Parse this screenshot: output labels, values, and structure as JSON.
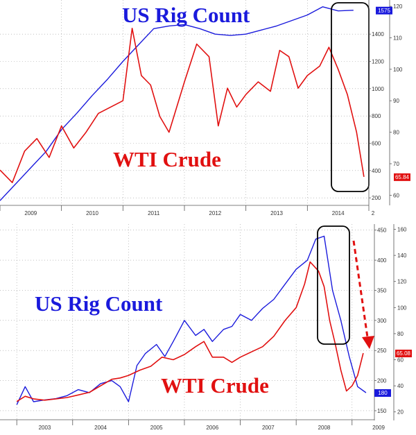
{
  "chart_data": [
    {
      "type": "line",
      "panel": "top",
      "period": [
        "2009",
        "2014"
      ],
      "annotations": [
        "US Rig Count",
        "WTI Crude"
      ],
      "x_ticks": [
        "2009",
        "2010",
        "2011",
        "2012",
        "2013",
        "2014",
        "2"
      ],
      "left_axis": {
        "ticks": [
          200,
          400,
          600,
          800,
          1000,
          1200,
          1400
        ],
        "range": [
          150,
          1650
        ]
      },
      "right_axis": {
        "ticks": [
          60,
          70,
          80,
          90,
          100,
          110,
          120
        ],
        "range": [
          57,
          122
        ]
      },
      "series": [
        {
          "name": "US Rig Count",
          "color": "#1a1adc",
          "axis": "left",
          "last_value_label": "1575",
          "x": [
            2009.0,
            2009.25,
            2009.5,
            2009.75,
            2010.0,
            2010.25,
            2010.5,
            2010.75,
            2011.0,
            2011.25,
            2011.5,
            2011.75,
            2012.0,
            2012.25,
            2012.5,
            2012.75,
            2013.0,
            2013.25,
            2013.5,
            2013.75,
            2014.0,
            2014.25,
            2014.5,
            2014.75
          ],
          "y": [
            180,
            300,
            420,
            540,
            700,
            820,
            950,
            1070,
            1200,
            1320,
            1440,
            1460,
            1470,
            1440,
            1400,
            1390,
            1400,
            1430,
            1460,
            1500,
            1540,
            1600,
            1570,
            1575
          ]
        },
        {
          "name": "WTI Crude",
          "color": "#e11010",
          "axis": "right",
          "last_value_label": "65.84",
          "x": [
            2009.0,
            2009.2,
            2009.4,
            2009.6,
            2009.8,
            2010.0,
            2010.2,
            2010.4,
            2010.6,
            2010.8,
            2011.0,
            2011.15,
            2011.3,
            2011.45,
            2011.6,
            2011.75,
            2012.0,
            2012.2,
            2012.4,
            2012.55,
            2012.7,
            2012.85,
            2013.0,
            2013.2,
            2013.4,
            2013.55,
            2013.7,
            2013.85,
            2014.0,
            2014.2,
            2014.35,
            2014.5,
            2014.65,
            2014.8,
            2014.92
          ],
          "y": [
            68,
            64,
            74,
            78,
            72,
            82,
            75,
            80,
            86,
            88,
            90,
            113,
            98,
            95,
            85,
            80,
            96,
            108,
            104,
            82,
            94,
            88,
            92,
            96,
            93,
            106,
            104,
            94,
            98,
            101,
            107,
            100,
            92,
            80,
            65.84
          ]
        }
      ]
    },
    {
      "type": "line",
      "panel": "bottom",
      "period": [
        "2003",
        "2009"
      ],
      "annotations": [
        "US Rig Count",
        "WTI Crude"
      ],
      "x_ticks": [
        "2003",
        "2004",
        "2005",
        "2006",
        "2007",
        "2008",
        "2009"
      ],
      "left_axis": {
        "ticks": [
          150,
          200,
          250,
          300,
          350,
          400,
          450
        ],
        "range": [
          135,
          460
        ]
      },
      "right_axis": {
        "ticks": [
          20,
          40,
          60,
          80,
          100,
          120,
          140,
          160
        ],
        "range": [
          14,
          164
        ]
      },
      "series": [
        {
          "name": "US Rig Count",
          "color": "#1a1adc",
          "axis": "left",
          "last_value_label": "180",
          "x": [
            2003.0,
            2003.15,
            2003.3,
            2003.5,
            2003.7,
            2003.9,
            2004.1,
            2004.3,
            2004.5,
            2004.7,
            2004.85,
            2005.0,
            2005.15,
            2005.3,
            2005.5,
            2005.65,
            2005.8,
            2006.0,
            2006.2,
            2006.35,
            2006.5,
            2006.7,
            2006.85,
            2007.0,
            2007.2,
            2007.4,
            2007.6,
            2007.8,
            2008.0,
            2008.2,
            2008.35,
            2008.5,
            2008.65,
            2008.8,
            2008.95,
            2009.1,
            2009.25
          ],
          "y": [
            160,
            190,
            165,
            168,
            170,
            175,
            185,
            180,
            195,
            200,
            190,
            165,
            225,
            245,
            260,
            240,
            265,
            300,
            275,
            285,
            265,
            285,
            290,
            310,
            300,
            320,
            335,
            360,
            385,
            400,
            435,
            440,
            350,
            300,
            240,
            190,
            180
          ]
        },
        {
          "name": "WTI Crude",
          "color": "#e11010",
          "axis": "right",
          "last_value_label": "65.08",
          "x": [
            2003.0,
            2003.15,
            2003.3,
            2003.5,
            2003.7,
            2003.9,
            2004.1,
            2004.3,
            2004.5,
            2004.7,
            2004.85,
            2005.0,
            2005.2,
            2005.4,
            2005.6,
            2005.8,
            2006.0,
            2006.2,
            2006.35,
            2006.5,
            2006.7,
            2006.85,
            2007.0,
            2007.2,
            2007.4,
            2007.6,
            2007.8,
            2008.0,
            2008.15,
            2008.25,
            2008.4,
            2008.5,
            2008.6,
            2008.7,
            2008.8,
            2008.9,
            2009.0,
            2009.1,
            2009.2
          ],
          "y": [
            28,
            32,
            30,
            29,
            30,
            31,
            33,
            35,
            40,
            45,
            46,
            48,
            52,
            55,
            62,
            60,
            64,
            70,
            74,
            62,
            62,
            58,
            62,
            66,
            70,
            78,
            90,
            100,
            118,
            135,
            128,
            116,
            90,
            72,
            52,
            36,
            40,
            48,
            65.08
          ]
        }
      ],
      "arrow": {
        "color": "#e11010",
        "style": "dashed",
        "direction": "down"
      }
    }
  ]
}
